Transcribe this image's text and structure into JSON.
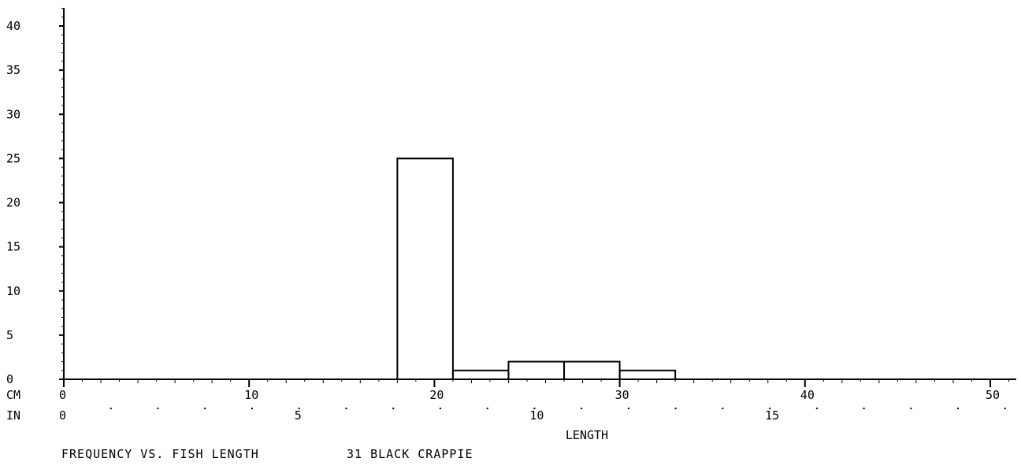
{
  "chart_data": {
    "type": "bar",
    "title": "FREQUENCY VS. FISH LENGTH",
    "subtitle": "31 BLACK CRAPPIE",
    "xlabel": "LENGTH",
    "x_unit_primary": "CM",
    "x_unit_secondary": "IN",
    "xlim_cm": [
      0,
      51.5
    ],
    "ylim": [
      0,
      42
    ],
    "y_ticks": [
      0,
      5,
      10,
      15,
      20,
      25,
      30,
      35,
      40
    ],
    "x_ticks_cm": [
      0,
      10,
      20,
      30,
      40,
      50
    ],
    "x_ticks_in": [
      0,
      5,
      10,
      15
    ],
    "bins_cm": [
      {
        "start": 18,
        "end": 21,
        "count": 25
      },
      {
        "start": 21,
        "end": 24,
        "count": 1
      },
      {
        "start": 24,
        "end": 27,
        "count": 2
      },
      {
        "start": 27,
        "end": 30,
        "count": 2
      },
      {
        "start": 30,
        "end": 33,
        "count": 1
      }
    ],
    "grid": false,
    "colors": {
      "line": "#000000",
      "background": "#ffffff"
    }
  }
}
